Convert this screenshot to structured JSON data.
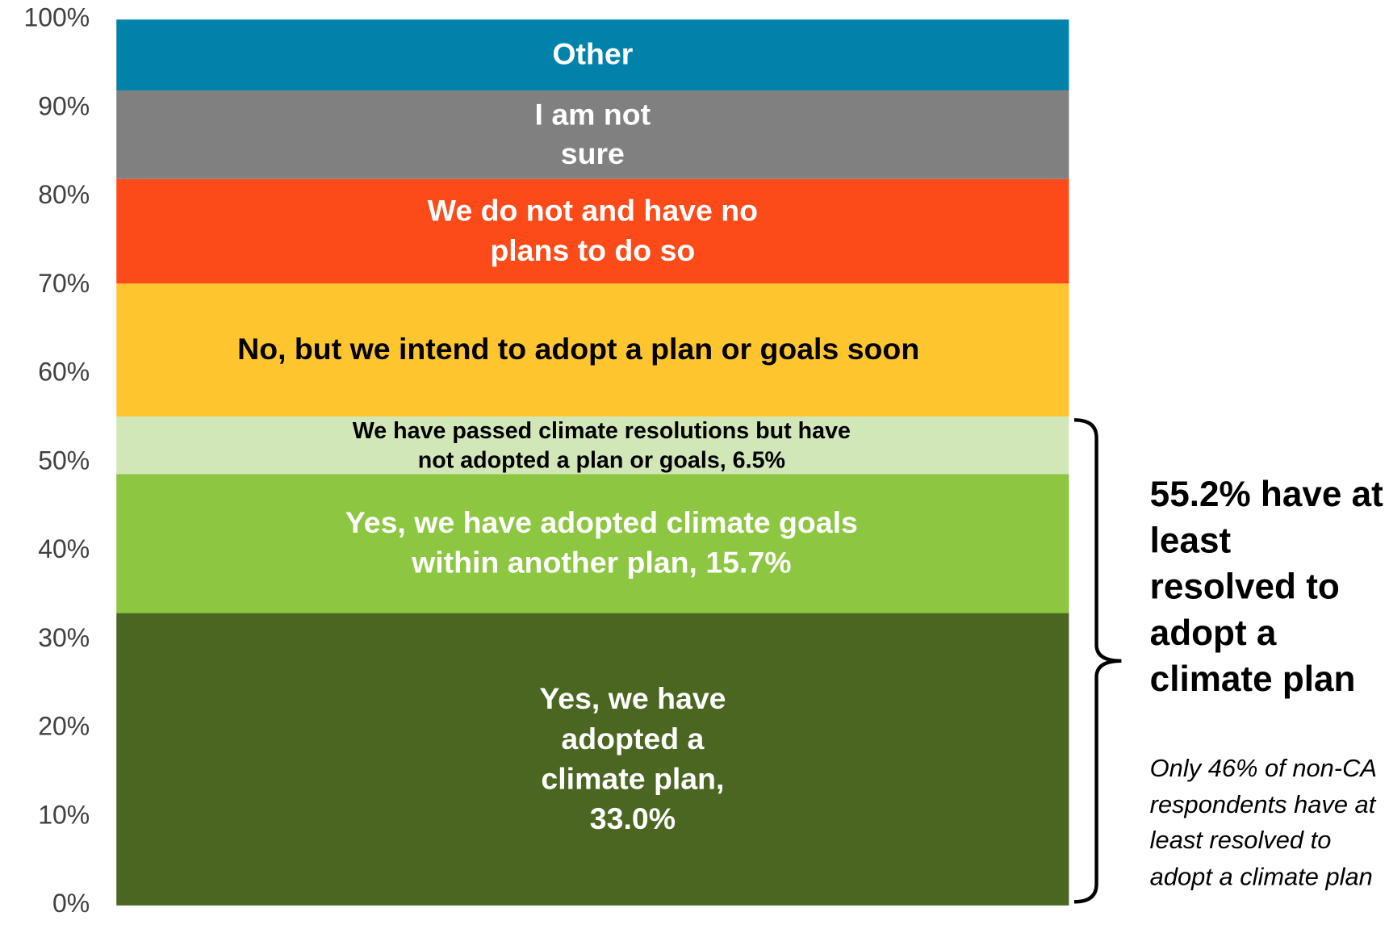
{
  "chart_data": {
    "type": "stacked_bar",
    "series": [
      {
        "name": "Yes, we have adopted a climate plan, 33.0%",
        "color": "#4a6621",
        "values": [
          33.0
        ]
      },
      {
        "name": "Yes, we have adopted climate goals within another plan, 15.7%",
        "color": "#8dc641",
        "values": [
          15.7
        ]
      },
      {
        "name": "We have passed climate resolutions but have not adopted a plan or goals, 6.5%",
        "color": "#d2e7b8",
        "values": [
          6.5
        ]
      },
      {
        "name": "No, but we intend to adopt a plan or goals soon",
        "color": "#fec52e",
        "values": [
          15.0
        ]
      },
      {
        "name": "We do not and have no plans to do so",
        "color": "#fc4a19",
        "values": [
          11.8
        ]
      },
      {
        "name": "I am not sure",
        "color": "#808080",
        "values": [
          10.0
        ]
      },
      {
        "name": "Other",
        "color": "#0082aa",
        "values": [
          8.0
        ]
      }
    ],
    "ylim": [
      0,
      100
    ],
    "yticks": [
      {
        "value": 0,
        "label": "0%"
      },
      {
        "value": 10,
        "label": "10%"
      },
      {
        "value": 20,
        "label": "20%"
      },
      {
        "value": 30,
        "label": "30%"
      },
      {
        "value": 40,
        "label": "40%"
      },
      {
        "value": 50,
        "label": "50%"
      },
      {
        "value": 60,
        "label": "60%"
      },
      {
        "value": 70,
        "label": "70%"
      },
      {
        "value": 80,
        "label": "80%"
      },
      {
        "value": 90,
        "label": "90%"
      },
      {
        "value": 100,
        "label": "100%"
      }
    ],
    "annotations": [
      "55.2% have at least resolved to adopt a climate plan",
      "Only 46% of non-CA respondents have at least resolved to adopt a climate plan"
    ]
  }
}
